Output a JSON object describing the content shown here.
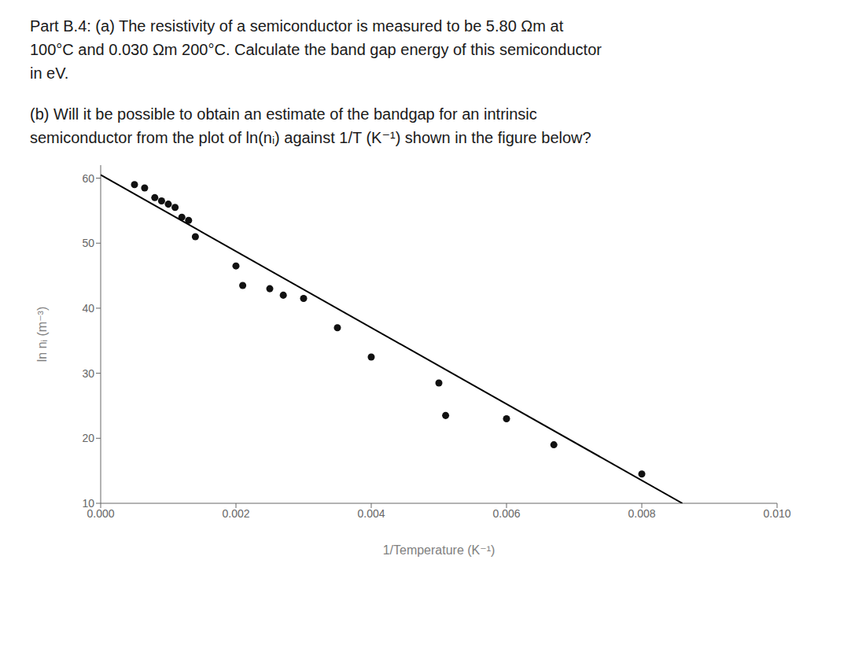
{
  "chart_data": {
    "type": "scatter",
    "annotations": [
      "Part B.4: (a) The resistivity of a semiconductor is measured to be 5.80 Ωm at",
      "100°C and 0.030 Ωm 200°C. Calculate the band gap energy of this semiconductor",
      "in eV.",
      "(b) Will it be possible to obtain an estimate of the bandgap for an intrinsic",
      "semiconductor from the plot of ln(nᵢ) against 1/T (K⁻¹) shown in the figure below?"
    ],
    "x_label": "1/Temperature (K⁻¹)",
    "y_label": "ln nᵢ  (m⁻³)",
    "series": [
      {
        "type": "scatter",
        "color": "#111111",
        "x": [
          0.0005,
          0.00065,
          0.0008,
          0.0009,
          0.001,
          0.0011,
          0.0012,
          0.0013,
          0.0014,
          0.002,
          0.0021,
          0.0025,
          0.0027,
          0.003,
          0.0035,
          0.004,
          0.005,
          0.0051,
          0.006,
          0.0067,
          0.008
        ],
        "values": [
          59.0,
          58.5,
          57.0,
          56.5,
          56.0,
          55.5,
          54.0,
          53.5,
          51.0,
          46.5,
          43.5,
          43.0,
          42.0,
          41.5,
          37.0,
          32.5,
          28.5,
          23.5,
          23.0,
          19.0,
          14.5
        ]
      },
      {
        "type": "line",
        "color": "#000000",
        "x": [
          0.0,
          0.0086
        ],
        "values": [
          60.5,
          10.0
        ]
      }
    ],
    "xlim": [
      0.0,
      0.01
    ],
    "xticks": [
      {
        "value": 0.0,
        "label": "0.000"
      },
      {
        "value": 0.002,
        "label": "0.002"
      },
      {
        "value": 0.004,
        "label": "0.004"
      },
      {
        "value": 0.006,
        "label": "0.006"
      },
      {
        "value": 0.008,
        "label": "0.008"
      },
      {
        "value": 0.01,
        "label": "0.010"
      }
    ],
    "ylim": [
      10,
      62
    ],
    "yticks": [
      10,
      20,
      30,
      40,
      50,
      60
    ],
    "grid": false
  }
}
